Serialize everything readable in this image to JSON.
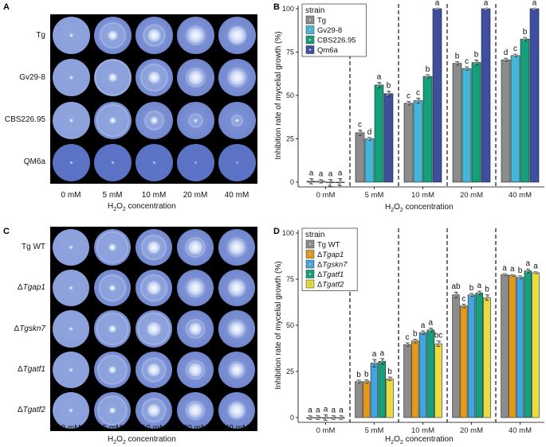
{
  "panels": {
    "A": {
      "letter": "A",
      "rows": [
        "Tg",
        "Gv29-8",
        "CBS226.95",
        "QM6a"
      ],
      "columns": [
        "0 mM",
        "5 mM",
        "10 mM",
        "20 mM",
        "40 mM"
      ],
      "xtitle_prefix": "H",
      "xtitle_sub1": "2",
      "xtitle_mid": "O",
      "xtitle_sub2": "2",
      "xtitle_suffix": " concentration",
      "colony": [
        [
          0.05,
          0.16,
          0.22,
          0.28,
          0.3
        ],
        [
          0.05,
          0.14,
          0.2,
          0.26,
          0.28
        ],
        [
          0.05,
          0.1,
          0.12,
          0.05,
          0.05
        ],
        [
          0.03,
          0.03,
          0.03,
          0.02,
          0.02
        ]
      ],
      "ring": [
        [
          0.82,
          0.42,
          0.35,
          0.3,
          0.28
        ],
        [
          0.82,
          0.62,
          0.45,
          0.3,
          0.3
        ],
        [
          0.8,
          0.55,
          0.3,
          0.2,
          0.15
        ],
        [
          0.0,
          0.0,
          0.0,
          0.0,
          0.0
        ]
      ]
    },
    "C": {
      "letter": "C",
      "rows": [
        {
          "delta": "",
          "name": "Tg WT"
        },
        {
          "delta": "Δ",
          "name": "Tgap1"
        },
        {
          "delta": "Δ",
          "name": "Tgskn7"
        },
        {
          "delta": "Δ",
          "name": "Tgatf1"
        },
        {
          "delta": "Δ",
          "name": "Tgatf2"
        }
      ],
      "columns": [
        "0 mM",
        "5 mM",
        "10 mM",
        "20 mM",
        "40 mM"
      ],
      "xtitle_prefix": "H",
      "xtitle_sub1": "2",
      "xtitle_mid": "O",
      "xtitle_sub2": "2",
      "xtitle_suffix": " concentration",
      "colony": [
        [
          0.05,
          0.12,
          0.22,
          0.26,
          0.28
        ],
        [
          0.05,
          0.1,
          0.24,
          0.28,
          0.28
        ],
        [
          0.05,
          0.12,
          0.24,
          0.22,
          0.26
        ],
        [
          0.05,
          0.12,
          0.22,
          0.24,
          0.24
        ],
        [
          0.05,
          0.1,
          0.22,
          0.26,
          0.28
        ]
      ],
      "ring": [
        [
          0.82,
          0.55,
          0.42,
          0.32,
          0.3
        ],
        [
          0.82,
          0.45,
          0.45,
          0.3,
          0.28
        ],
        [
          0.82,
          0.55,
          0.55,
          0.3,
          0.28
        ],
        [
          0.82,
          0.5,
          0.4,
          0.3,
          0.26
        ],
        [
          0.82,
          0.5,
          0.4,
          0.3,
          0.28
        ]
      ]
    }
  },
  "chart_data": [
    {
      "type": "bar",
      "panel": "B",
      "ylabel": "Inhibition rate of mycelial growth (%)",
      "xtitle_prefix": "H",
      "xtitle_sub1": "2",
      "xtitle_mid": "O",
      "xtitle_sub2": "2",
      "xtitle_suffix": " concentration",
      "ylim": [
        0,
        100
      ],
      "yticks": [
        "0",
        "25",
        "50",
        "75",
        "100"
      ],
      "categories": [
        "0 mM",
        "5 mM",
        "10 mM",
        "20 mM",
        "40 mM"
      ],
      "legend_title": "strain",
      "legend_position": "top-left",
      "series": [
        {
          "name": "Tg",
          "italic": false,
          "delta": "",
          "color": "#8c8c8c",
          "values": [
            0.5,
            28.5,
            45.5,
            68.5,
            70.5
          ],
          "errors": [
            1.5,
            1.5,
            1.0,
            1.0,
            1.0
          ],
          "letters": [
            "a",
            "c",
            "c",
            "b",
            "d"
          ]
        },
        {
          "name": "Gv29-8",
          "italic": false,
          "delta": "",
          "color": "#43b6d9",
          "values": [
            0.5,
            25.0,
            47.0,
            65.5,
            73.0
          ],
          "errors": [
            1.0,
            0.8,
            1.5,
            1.0,
            0.8
          ],
          "letters": [
            "a",
            "d",
            "c",
            "c",
            "c"
          ]
        },
        {
          "name": "CBS226.95",
          "italic": false,
          "delta": "",
          "color": "#13a07a",
          "values": [
            -0.5,
            56.0,
            61.0,
            69.0,
            82.5
          ],
          "errors": [
            2.0,
            1.5,
            1.0,
            1.5,
            1.0
          ],
          "letters": [
            "a",
            "a",
            "b",
            "b",
            "b"
          ]
        },
        {
          "name": "Qm6a",
          "italic": false,
          "delta": "",
          "color": "#3f4fa0",
          "values": [
            0.0,
            51.0,
            100.0,
            100.0,
            100.0
          ],
          "errors": [
            2.0,
            1.5,
            0.3,
            0.3,
            0.3
          ],
          "letters": [
            "a",
            "b",
            "a",
            "a",
            "a"
          ]
        }
      ]
    },
    {
      "type": "bar",
      "panel": "D",
      "ylabel": "Inhibition rate of mycelial growth (%)",
      "xtitle_prefix": "H",
      "xtitle_sub1": "2",
      "xtitle_mid": "O",
      "xtitle_sub2": "2",
      "xtitle_suffix": " concentration",
      "ylim": [
        0,
        100
      ],
      "yticks": [
        "0",
        "25",
        "50",
        "75",
        "100"
      ],
      "categories": [
        "0 mM",
        "5 mM",
        "10 mM",
        "20 mM",
        "40 mM"
      ],
      "legend_title": "strain",
      "legend_position": "top-left",
      "series": [
        {
          "name": "Tg WT",
          "italic": false,
          "delta": "",
          "color": "#8c8c8c",
          "values": [
            0.0,
            19.5,
            39.5,
            66.5,
            77.5
          ],
          "errors": [
            1.0,
            0.8,
            1.0,
            1.5,
            0.5
          ],
          "letters": [
            "a",
            "b",
            "c",
            "ab",
            "a"
          ]
        },
        {
          "name": "Tgap1",
          "italic": true,
          "delta": "Δ",
          "color": "#e39a1b",
          "values": [
            0.0,
            19.5,
            41.5,
            60.5,
            77.0
          ],
          "errors": [
            1.0,
            1.0,
            1.0,
            1.0,
            0.5
          ],
          "letters": [
            "a",
            "b",
            "b",
            "c",
            "a"
          ]
        },
        {
          "name": "Tgskn7",
          "italic": true,
          "delta": "Δ",
          "color": "#43a5dd",
          "values": [
            0.0,
            29.5,
            46.0,
            66.5,
            76.0
          ],
          "errors": [
            1.5,
            2.0,
            1.0,
            0.8,
            0.8
          ],
          "letters": [
            "a",
            "a",
            "a",
            "b",
            "b"
          ]
        },
        {
          "name": "Tgatf1",
          "italic": true,
          "delta": "Δ",
          "color": "#13a07a",
          "values": [
            0.0,
            30.5,
            47.5,
            67.5,
            79.5
          ],
          "errors": [
            1.0,
            1.5,
            1.0,
            1.0,
            1.0
          ],
          "letters": [
            "a",
            "a",
            "a",
            "a",
            "a"
          ]
        },
        {
          "name": "Tgatf2",
          "italic": true,
          "delta": "Δ",
          "color": "#eadb3f",
          "values": [
            0.0,
            21.0,
            40.0,
            65.0,
            78.5
          ],
          "errors": [
            1.0,
            1.0,
            1.5,
            1.5,
            0.5
          ],
          "letters": [
            "a",
            "b",
            "bc",
            "b",
            "a"
          ]
        }
      ]
    }
  ]
}
